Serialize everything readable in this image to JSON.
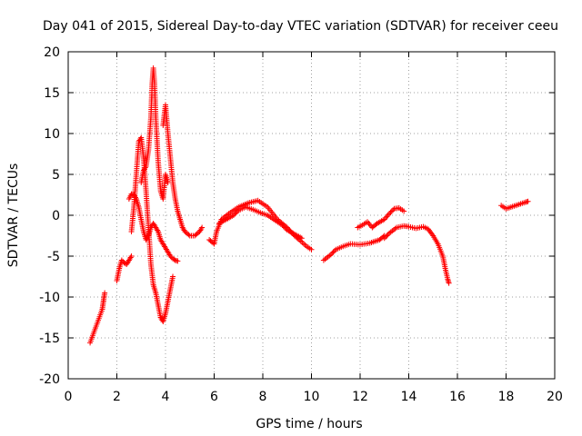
{
  "chart_data": {
    "type": "scatter",
    "title": "Day 041 of 2015, Sidereal Day-to-day VTEC variation (SDTVAR) for receiver ceeu",
    "xlabel": "GPS time / hours",
    "ylabel": "SDTVAR / TECUs",
    "xlim": [
      0,
      20
    ],
    "ylim": [
      -20,
      20
    ],
    "xticks": [
      "0",
      "2",
      "4",
      "6",
      "8",
      "10",
      "12",
      "14",
      "16",
      "18",
      "20"
    ],
    "yticks": [
      "-20",
      "-15",
      "-10",
      "-5",
      "0",
      "5",
      "10",
      "15",
      "20"
    ],
    "grid": true,
    "marker": "+",
    "color": "#ff0000",
    "series": [
      {
        "name": "track-a",
        "x": [
          0.9,
          1.4,
          1.45,
          1.5
        ],
        "y": [
          -15.6,
          -11.5,
          -10.5,
          -9.5
        ]
      },
      {
        "name": "track-b",
        "x": [
          2.0,
          2.1,
          2.2,
          2.3,
          2.4,
          2.5,
          2.6
        ],
        "y": [
          -8.0,
          -6.5,
          -5.5,
          -5.8,
          -6.0,
          -5.5,
          -5.0
        ]
      },
      {
        "name": "track-c",
        "x": [
          2.6,
          2.7,
          2.8,
          2.9,
          3.0,
          3.1,
          3.2,
          3.3,
          3.4,
          3.5,
          3.6,
          3.7,
          3.8,
          3.9,
          4.0,
          4.1,
          4.2,
          4.3
        ],
        "y": [
          -2.0,
          1.0,
          5.0,
          9.0,
          9.5,
          7.0,
          3.0,
          -1.5,
          -6.0,
          -8.5,
          -9.5,
          -11.0,
          -12.5,
          -13.0,
          -12.0,
          -10.5,
          -9.0,
          -7.5
        ]
      },
      {
        "name": "track-d",
        "x": [
          3.0,
          3.1,
          3.2,
          3.3,
          3.4,
          3.45,
          3.5,
          3.55,
          3.6,
          3.7,
          3.8,
          3.9,
          4.0,
          4.1
        ],
        "y": [
          4.0,
          5.5,
          6.0,
          8.0,
          12.0,
          16.0,
          18.0,
          16.0,
          12.0,
          6.5,
          3.0,
          2.0,
          5.0,
          4.0
        ]
      },
      {
        "name": "track-e",
        "x": [
          2.5,
          2.6,
          2.7,
          2.8,
          2.9,
          3.0,
          3.1,
          3.2,
          3.3,
          3.4,
          3.5,
          3.6,
          3.7,
          3.8,
          3.9,
          4.0,
          4.1,
          4.2,
          4.3,
          4.4,
          4.5
        ],
        "y": [
          2.0,
          2.6,
          2.5,
          2.0,
          1.0,
          -0.5,
          -2.0,
          -3.0,
          -2.5,
          -1.5,
          -1.0,
          -1.5,
          -2.0,
          -3.0,
          -3.5,
          -4.0,
          -4.5,
          -5.0,
          -5.3,
          -5.5,
          -5.6
        ]
      },
      {
        "name": "track-f",
        "x": [
          3.9,
          4.0,
          4.1,
          4.2,
          4.3,
          4.4,
          4.5,
          4.6,
          4.7,
          4.8,
          5.0,
          5.2,
          5.4,
          5.5
        ],
        "y": [
          11.0,
          13.5,
          10.0,
          7.0,
          4.0,
          2.0,
          0.5,
          -0.5,
          -1.5,
          -2.0,
          -2.5,
          -2.5,
          -2.0,
          -1.5
        ]
      },
      {
        "name": "track-g",
        "x": [
          5.8,
          6.0,
          6.1,
          6.3,
          6.6,
          7.0,
          7.4,
          7.8,
          8.2,
          8.6,
          9.0,
          9.3,
          9.5,
          9.8,
          10.0
        ],
        "y": [
          -3.0,
          -3.5,
          -2.0,
          -0.5,
          0.2,
          1.0,
          1.5,
          1.8,
          1.0,
          -0.5,
          -1.5,
          -2.5,
          -3.0,
          -3.8,
          -4.2
        ]
      },
      {
        "name": "track-h",
        "x": [
          6.2,
          6.5,
          6.8,
          7.0,
          7.3,
          7.6,
          7.9,
          8.2,
          8.5,
          8.8,
          9.0,
          9.3,
          9.6
        ],
        "y": [
          -1.0,
          -0.5,
          0.0,
          0.6,
          1.0,
          0.7,
          0.3,
          0.0,
          -0.6,
          -1.2,
          -1.8,
          -2.3,
          -2.8
        ]
      },
      {
        "name": "track-i",
        "x": [
          10.5,
          10.8,
          11.0,
          11.3,
          11.6,
          12.0,
          12.4,
          12.8,
          13.0
        ],
        "y": [
          -5.5,
          -4.8,
          -4.2,
          -3.8,
          -3.5,
          -3.6,
          -3.4,
          -3.0,
          -2.5
        ]
      },
      {
        "name": "track-j",
        "x": [
          11.9,
          12.1,
          12.3,
          12.5,
          12.7,
          13.0,
          13.2,
          13.4,
          13.6,
          13.8
        ],
        "y": [
          -1.5,
          -1.2,
          -0.8,
          -1.5,
          -1.0,
          -0.5,
          0.2,
          0.8,
          0.9,
          0.5
        ]
      },
      {
        "name": "track-k",
        "x": [
          13.0,
          13.2,
          13.5,
          13.8,
          14.0,
          14.3,
          14.6,
          14.8,
          15.0,
          15.2,
          15.4,
          15.5,
          15.6,
          15.65
        ],
        "y": [
          -2.8,
          -2.2,
          -1.5,
          -1.3,
          -1.4,
          -1.6,
          -1.4,
          -1.7,
          -2.5,
          -3.5,
          -5.0,
          -6.5,
          -7.8,
          -8.3
        ]
      },
      {
        "name": "track-l",
        "x": [
          17.8,
          18.0,
          18.2,
          18.4,
          18.6,
          18.8,
          18.9
        ],
        "y": [
          1.2,
          0.8,
          1.0,
          1.2,
          1.4,
          1.6,
          1.7
        ]
      }
    ]
  }
}
